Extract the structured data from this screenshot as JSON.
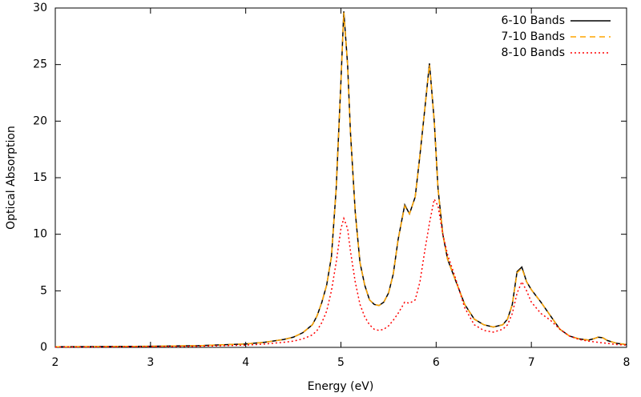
{
  "chart_data": {
    "type": "line",
    "xlabel": "Energy (eV)",
    "ylabel": "Optical Absorption",
    "x": [
      2.0,
      2.5,
      3.0,
      3.5,
      4.0,
      4.2,
      4.4,
      4.5,
      4.6,
      4.7,
      4.75,
      4.8,
      4.85,
      4.9,
      4.95,
      5.0,
      5.03,
      5.07,
      5.1,
      5.15,
      5.2,
      5.25,
      5.3,
      5.35,
      5.4,
      5.45,
      5.5,
      5.55,
      5.6,
      5.67,
      5.72,
      5.78,
      5.83,
      5.88,
      5.93,
      5.98,
      6.02,
      6.07,
      6.12,
      6.2,
      6.3,
      6.4,
      6.5,
      6.6,
      6.7,
      6.75,
      6.8,
      6.85,
      6.9,
      6.95,
      7.0,
      7.1,
      7.2,
      7.3,
      7.4,
      7.5,
      7.6,
      7.65,
      7.7,
      7.75,
      7.8,
      7.9,
      8.0
    ],
    "series": [
      {
        "name": "6-10 Bands",
        "color": "#000000",
        "dash": "solid",
        "values": [
          0.05,
          0.07,
          0.1,
          0.15,
          0.3,
          0.45,
          0.7,
          0.9,
          1.3,
          2.0,
          2.8,
          4.0,
          5.5,
          8.0,
          14.0,
          23.5,
          29.7,
          25,
          19,
          12,
          7.5,
          5.5,
          4.2,
          3.8,
          3.7,
          4.0,
          4.8,
          6.5,
          9.5,
          12.6,
          11.8,
          13.3,
          17,
          21,
          25.1,
          20,
          14,
          10,
          7.8,
          6,
          3.8,
          2.5,
          2.0,
          1.8,
          2.0,
          2.5,
          3.8,
          6.7,
          7.1,
          5.8,
          5.1,
          4.0,
          2.8,
          1.6,
          1.0,
          0.75,
          0.65,
          0.75,
          0.9,
          0.85,
          0.6,
          0.35,
          0.25
        ]
      },
      {
        "name": "7-10 Bands",
        "color": "#ffa500",
        "dash": "dashed",
        "values": [
          0.05,
          0.07,
          0.1,
          0.15,
          0.3,
          0.45,
          0.7,
          0.9,
          1.3,
          2.0,
          2.8,
          4.0,
          5.5,
          8.0,
          14.0,
          23.4,
          29.6,
          25,
          19,
          12,
          7.5,
          5.5,
          4.2,
          3.8,
          3.7,
          4.0,
          4.8,
          6.5,
          9.5,
          12.5,
          11.8,
          13.3,
          17,
          21,
          25.0,
          20,
          14,
          10,
          7.8,
          6,
          3.8,
          2.5,
          2.0,
          1.8,
          2.0,
          2.5,
          3.8,
          6.6,
          7.0,
          5.8,
          5.1,
          4.0,
          2.8,
          1.6,
          1.0,
          0.75,
          0.65,
          0.75,
          0.9,
          0.85,
          0.6,
          0.35,
          0.25
        ]
      },
      {
        "name": "8-10 Bands",
        "color": "#ff0000",
        "dash": "dotted",
        "values": [
          0.03,
          0.04,
          0.06,
          0.1,
          0.2,
          0.3,
          0.45,
          0.55,
          0.75,
          1.1,
          1.5,
          2.2,
          3.2,
          5.0,
          7.5,
          10.5,
          11.4,
          10.5,
          8.5,
          5.8,
          3.8,
          2.7,
          2.0,
          1.6,
          1.5,
          1.6,
          1.9,
          2.4,
          3.0,
          4.0,
          3.9,
          4.2,
          5.8,
          8.5,
          11,
          13.1,
          12.5,
          10,
          8.2,
          6.2,
          3.5,
          2.0,
          1.5,
          1.35,
          1.6,
          2.0,
          3.0,
          4.8,
          5.8,
          5.0,
          4.0,
          3.0,
          2.4,
          1.6,
          1.0,
          0.7,
          0.55,
          0.5,
          0.45,
          0.4,
          0.35,
          0.25,
          0.2
        ]
      }
    ],
    "xlim": [
      2,
      8
    ],
    "xticks": [
      2,
      3,
      4,
      5,
      6,
      7,
      8
    ],
    "ylim": [
      0,
      30
    ],
    "yticks": [
      0,
      5,
      10,
      15,
      20,
      25,
      30
    ],
    "legend": "top-right"
  }
}
